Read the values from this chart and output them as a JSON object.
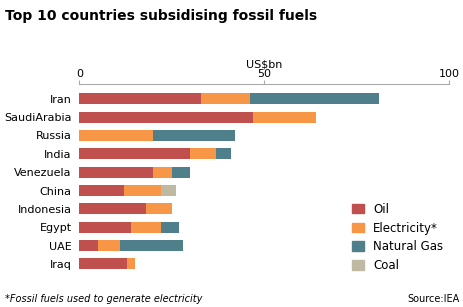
{
  "title": "Top 10 countries subsidising fossil fuels",
  "xlabel": "US$bn",
  "footnote": "*Fossil fuels used to generate electricity",
  "source": "Source:IEA",
  "xlim": [
    0,
    100
  ],
  "xticks": [
    0,
    50,
    100
  ],
  "countries": [
    "Iraq",
    "UAE",
    "Egypt",
    "Indonesia",
    "China",
    "Venezuela",
    "India",
    "Russia",
    "SaudiArabia",
    "Iran"
  ],
  "oil": [
    13,
    5,
    14,
    18,
    12,
    20,
    30,
    0,
    47,
    33
  ],
  "electricity": [
    2,
    6,
    8,
    7,
    10,
    5,
    7,
    20,
    17,
    13
  ],
  "natural_gas": [
    0,
    17,
    5,
    0,
    0,
    5,
    4,
    22,
    0,
    35
  ],
  "coal": [
    0,
    0,
    0,
    0,
    4,
    0,
    0,
    0,
    0,
    0
  ],
  "colors": {
    "oil": "#c0504d",
    "electricity": "#f79646",
    "natural_gas": "#4f7f8b",
    "coal": "#bfb8a3"
  },
  "background_color": "#ffffff",
  "bar_height": 0.6,
  "title_fontsize": 10,
  "axis_fontsize": 8,
  "tick_fontsize": 8,
  "legend_fontsize": 8.5
}
